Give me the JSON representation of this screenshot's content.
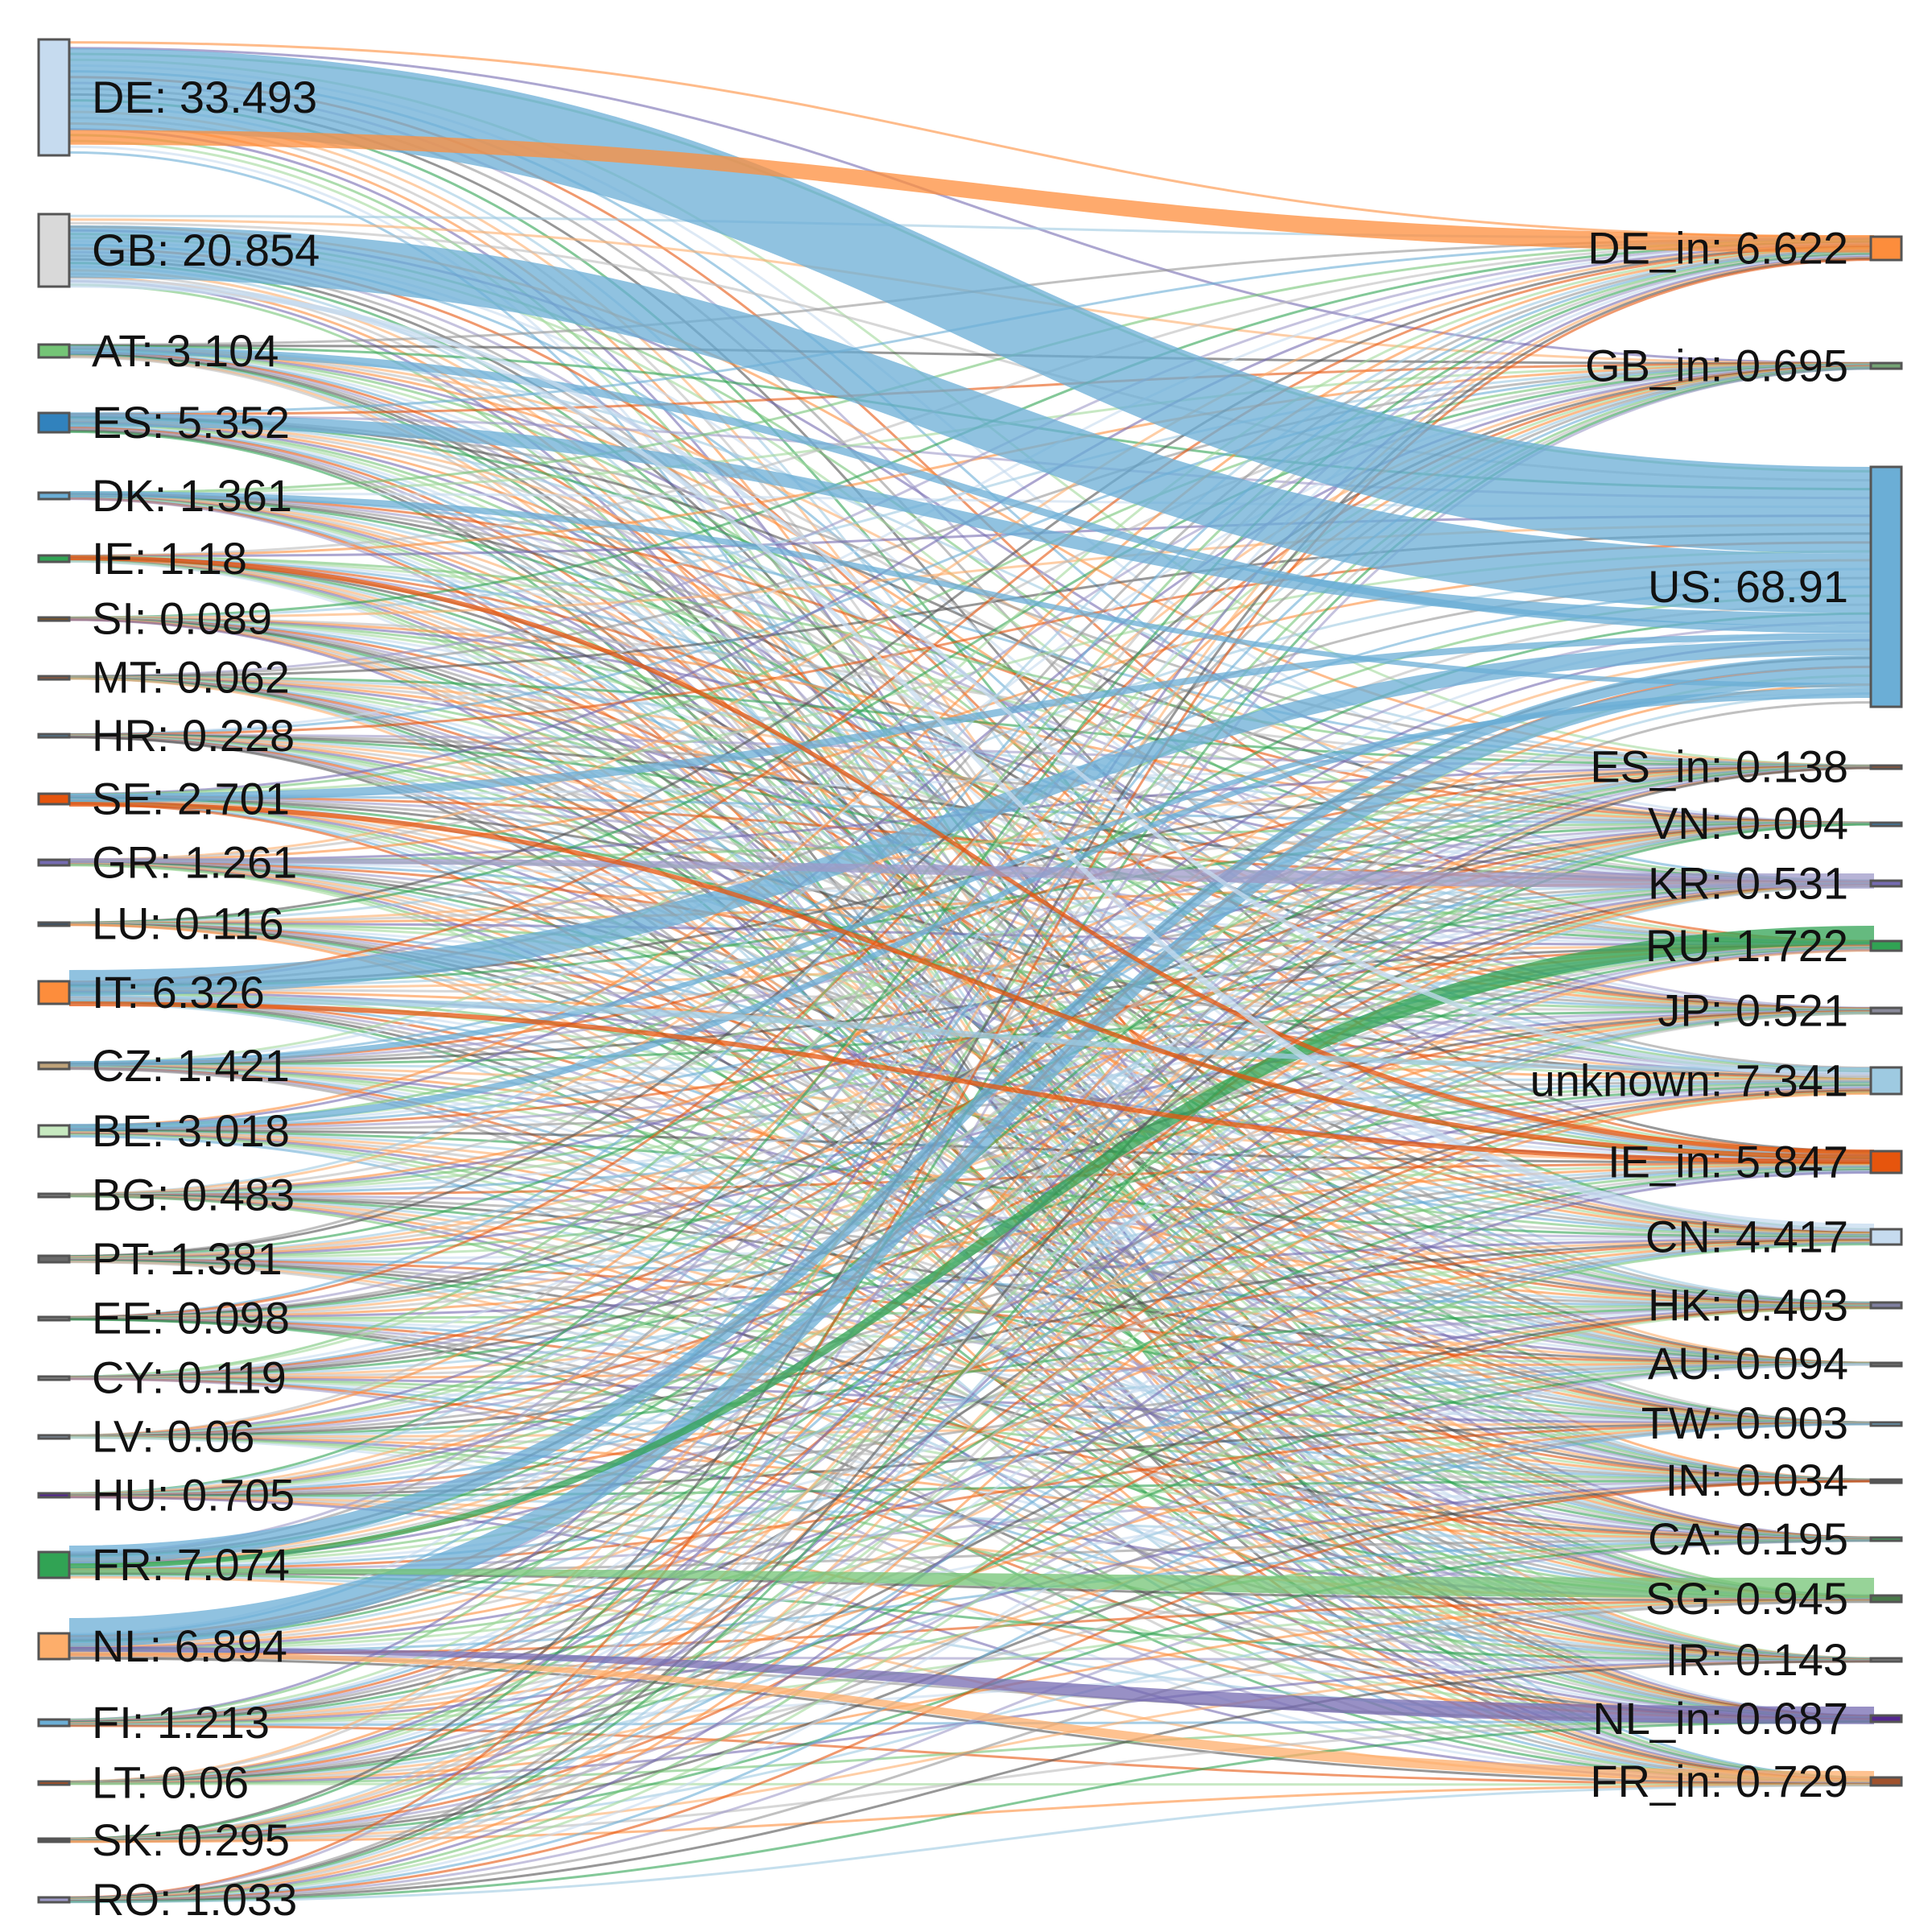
{
  "chart_data": {
    "type": "sankey",
    "unit_format": "{name}: {value}",
    "sources": [
      {
        "id": "DE",
        "label": "DE: 33.493",
        "color": "#c6dbef"
      },
      {
        "id": "GB",
        "label": "GB: 20.854",
        "color": "#d9d9d9"
      },
      {
        "id": "AT",
        "label": "AT: 3.104",
        "color": "#74c476"
      },
      {
        "id": "ES",
        "label": "ES: 5.352",
        "color": "#3182bd"
      },
      {
        "id": "DK",
        "label": "DK: 1.361",
        "color": "#6baed6"
      },
      {
        "id": "IE",
        "label": "IE: 1.18",
        "color": "#31a354"
      },
      {
        "id": "SI",
        "label": "SI: 0.089",
        "color": "#8c510a"
      },
      {
        "id": "MT",
        "label": "MT: 0.062",
        "color": "#a0522d"
      },
      {
        "id": "HR",
        "label": "HR: 0.228",
        "color": "#4a7a9a"
      },
      {
        "id": "SE",
        "label": "SE: 2.701",
        "color": "#e6550d"
      },
      {
        "id": "GR",
        "label": "GR: 1.261",
        "color": "#756bb1"
      },
      {
        "id": "LU",
        "label": "LU: 0.116",
        "color": "#2c4a6a"
      },
      {
        "id": "IT",
        "label": "IT: 6.326",
        "color": "#fd8d3c"
      },
      {
        "id": "CZ",
        "label": "CZ: 1.421",
        "color": "#bfa37a"
      },
      {
        "id": "BE",
        "label": "BE: 3.018",
        "color": "#c7e9c0"
      },
      {
        "id": "BG",
        "label": "BG: 0.483",
        "color": "#8a8a8a"
      },
      {
        "id": "PT",
        "label": "PT: 1.381",
        "color": "#6a6a6a"
      },
      {
        "id": "EE",
        "label": "EE: 0.098",
        "color": "#888888"
      },
      {
        "id": "CY",
        "label": "CY: 0.119",
        "color": "#999999"
      },
      {
        "id": "LV",
        "label": "LV: 0.06",
        "color": "#8899aa"
      },
      {
        "id": "HU",
        "label": "HU: 0.705",
        "color": "#54278f"
      },
      {
        "id": "FR",
        "label": "FR: 7.074",
        "color": "#31a354"
      },
      {
        "id": "NL",
        "label": "NL: 6.894",
        "color": "#fdae6b"
      },
      {
        "id": "FI",
        "label": "FI: 1.213",
        "color": "#6baed6"
      },
      {
        "id": "LT",
        "label": "LT: 0.06",
        "color": "#d94801"
      },
      {
        "id": "SK",
        "label": "SK: 0.295",
        "color": "#555555"
      },
      {
        "id": "RO",
        "label": "RO: 1.033",
        "color": "#9e9ac8"
      }
    ],
    "targets": [
      {
        "id": "DE_in",
        "label": "DE_in: 6.622",
        "color": "#fd8d3c"
      },
      {
        "id": "GB_in",
        "label": "GB_in: 0.695",
        "color": "#74a474"
      },
      {
        "id": "US",
        "label": "US: 68.91",
        "color": "#6baed6"
      },
      {
        "id": "ES_in",
        "label": "ES_in: 0.138",
        "color": "#a0522d"
      },
      {
        "id": "VN",
        "label": "VN: 0.004",
        "color": "#3182bd"
      },
      {
        "id": "KR",
        "label": "KR: 0.531",
        "color": "#756bb1"
      },
      {
        "id": "RU",
        "label": "RU: 1.722",
        "color": "#31a354"
      },
      {
        "id": "JP",
        "label": "JP: 0.521",
        "color": "#8a8a9a"
      },
      {
        "id": "unknown",
        "label": "unknown: 7.341",
        "color": "#9ecae1"
      },
      {
        "id": "IE_in",
        "label": "IE_in: 5.847",
        "color": "#e6550d"
      },
      {
        "id": "CN",
        "label": "CN: 4.417",
        "color": "#c6dbef"
      },
      {
        "id": "HK",
        "label": "HK: 0.403",
        "color": "#7f7fa0"
      },
      {
        "id": "AU",
        "label": "AU: 0.094",
        "color": "#777777"
      },
      {
        "id": "TW",
        "label": "TW: 0.003",
        "color": "#6baed6"
      },
      {
        "id": "IN",
        "label": "IN: 0.034",
        "color": "#555555"
      },
      {
        "id": "CA",
        "label": "CA: 0.195",
        "color": "#41ab5d"
      },
      {
        "id": "SG",
        "label": "SG: 0.945",
        "color": "#4a7a4a"
      },
      {
        "id": "IR",
        "label": "IR: 0.143",
        "color": "#8a8a8a"
      },
      {
        "id": "NL_in",
        "label": "NL_in: 0.687",
        "color": "#54278f"
      },
      {
        "id": "FR_in",
        "label": "FR_in: 0.729",
        "color": "#a0522d"
      }
    ],
    "major_links": [
      {
        "source": "DE",
        "target": "US",
        "value": 25.0,
        "color": "#6baed6"
      },
      {
        "source": "DE",
        "target": "DE_in",
        "value": 4.5,
        "color": "#fd8d3c"
      },
      {
        "source": "GB",
        "target": "US",
        "value": 17.0,
        "color": "#6baed6"
      },
      {
        "source": "ES",
        "target": "US",
        "value": 3.8,
        "color": "#6baed6"
      },
      {
        "source": "AT",
        "target": "US",
        "value": 2.0,
        "color": "#6baed6"
      },
      {
        "source": "SE",
        "target": "US",
        "value": 1.8,
        "color": "#6baed6"
      },
      {
        "source": "IT",
        "target": "US",
        "value": 4.5,
        "color": "#6baed6"
      },
      {
        "source": "FR",
        "target": "US",
        "value": 3.5,
        "color": "#6baed6"
      },
      {
        "source": "NL",
        "target": "US",
        "value": 4.5,
        "color": "#6baed6"
      },
      {
        "source": "DK",
        "target": "US",
        "value": 0.9,
        "color": "#6baed6"
      },
      {
        "source": "BE",
        "target": "US",
        "value": 1.5,
        "color": "#6baed6"
      },
      {
        "source": "CZ",
        "target": "US",
        "value": 0.8,
        "color": "#6baed6"
      },
      {
        "source": "FR",
        "target": "RU",
        "value": 0.8,
        "color": "#31a354"
      },
      {
        "source": "FR",
        "target": "SG",
        "value": 0.6,
        "color": "#74c476"
      },
      {
        "source": "IE",
        "target": "IE_in",
        "value": 0.6,
        "color": "#e6550d"
      },
      {
        "source": "NL",
        "target": "NL_in",
        "value": 0.5,
        "color": "#756bb1"
      },
      {
        "source": "NL",
        "target": "FR_in",
        "value": 0.4,
        "color": "#fdae6b"
      },
      {
        "source": "GR",
        "target": "KR",
        "value": 0.4,
        "color": "#9e9ac8"
      },
      {
        "source": "IT",
        "target": "unknown",
        "value": 1.2,
        "color": "#9ecae1"
      },
      {
        "source": "GB",
        "target": "CN",
        "value": 1.5,
        "color": "#c6dbef"
      },
      {
        "source": "GB",
        "target": "unknown",
        "value": 1.5,
        "color": "#c6dbef"
      },
      {
        "source": "SE",
        "target": "IE_in",
        "value": 0.6,
        "color": "#e6550d"
      },
      {
        "source": "IT",
        "target": "IE_in",
        "value": 0.6,
        "color": "#e6550d"
      }
    ]
  }
}
